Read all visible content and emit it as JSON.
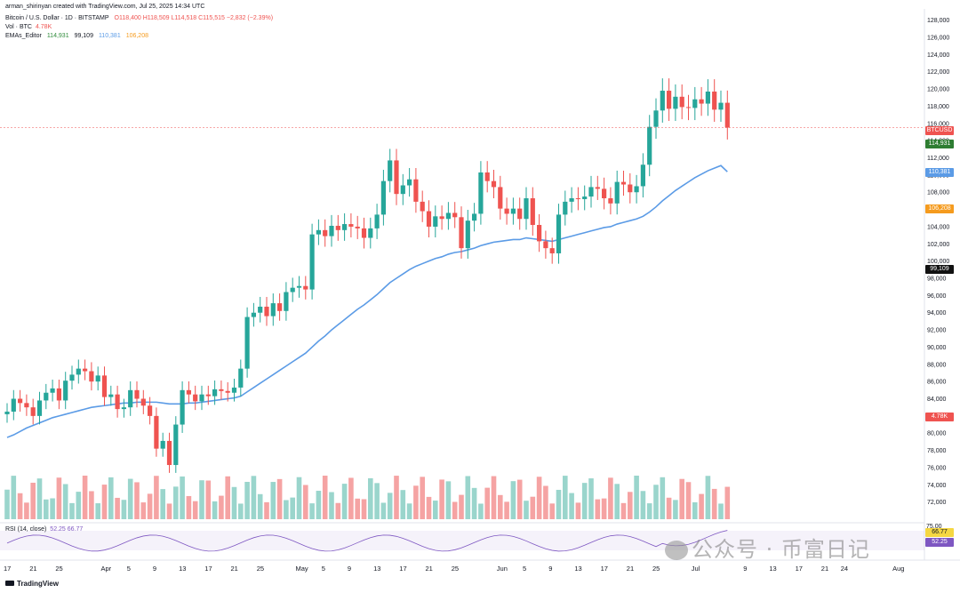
{
  "header": {
    "author_line": "arman_shirinyan created with TradingView.com, Jul 25, 2025 14:34 UTC",
    "symbol": "Bitcoin / U.S. Dollar · 1D · BITSTAMP",
    "ohlc": "O118,400  H118,509  L114,518  C115,515  −2,832 (−2.39%)",
    "vol_label": "Vol · BTC",
    "vol_value": "4.78K",
    "ema_label": "EMAs_Editor",
    "ema_vals": [
      "114,931",
      "99,109",
      "110,381",
      "106,208"
    ]
  },
  "tags": {
    "symbol": "BTCUSD",
    "ema20": "114,931",
    "ema50": "110,381",
    "ema100": "106,208",
    "ema200": "99,109",
    "volume": "4.78K",
    "rsi_hi": "66.77",
    "rsi_lo": "52.25"
  },
  "rsi": {
    "label": "RSI (14, close)",
    "values": "52.25  66.77",
    "scale_top": "75.00"
  },
  "footer": {
    "brand": "TradingView",
    "watermark": "公众号 · 币富日记"
  },
  "colors": {
    "up": "#26a69a",
    "down": "#ef5350",
    "vol_up": "#9ad5cc",
    "vol_down": "#f5a3a3",
    "ema20": "#8bc48a",
    "ema50": "#5b9be6",
    "ema100": "#f59b1e",
    "ema200": "#111111",
    "trend": "#4c78d8",
    "rsi": "#7e57c2"
  },
  "chart_data": {
    "type": "line",
    "title": "Bitcoin / U.S. Dollar · 1D · BITSTAMP",
    "ylim": [
      70000,
      129000
    ],
    "y_ticks": [
      72000,
      74000,
      76000,
      78000,
      80000,
      82000,
      84000,
      86000,
      88000,
      90000,
      92000,
      94000,
      96000,
      98000,
      100000,
      102000,
      104000,
      106000,
      108000,
      110000,
      112000,
      114000,
      116000,
      118000,
      120000,
      122000,
      124000,
      126000,
      128000
    ],
    "x_ticks": [
      "17",
      "21",
      "25",
      "Apr",
      "5",
      "9",
      "13",
      "17",
      "21",
      "25",
      "May",
      "5",
      "9",
      "13",
      "17",
      "21",
      "25",
      "Jun",
      "5",
      "9",
      "13",
      "17",
      "21",
      "25",
      "Jul",
      "9",
      "13",
      "17",
      "21",
      "24",
      "Aug"
    ],
    "x_tick_days": [
      0,
      4,
      8,
      15,
      19,
      23,
      27,
      31,
      35,
      39,
      45,
      49,
      53,
      57,
      61,
      65,
      69,
      76,
      80,
      84,
      88,
      92,
      96,
      100,
      106,
      114,
      118,
      122,
      126,
      129,
      137
    ],
    "candles_close": [
      82500,
      84000,
      83500,
      83000,
      82000,
      83800,
      84700,
      85200,
      83800,
      86100,
      86800,
      87500,
      87200,
      86000,
      86700,
      84200,
      84500,
      82800,
      83000,
      85000,
      84000,
      83200,
      82000,
      78200,
      79100,
      76300,
      81000,
      85000,
      84500,
      83700,
      84500,
      84300,
      85100,
      84900,
      84700,
      85300,
      87500,
      93500,
      94000,
      94700,
      93600,
      95100,
      94200,
      96400,
      96900,
      97100,
      96700,
      103100,
      103600,
      102900,
      104100,
      103600,
      104300,
      104000,
      103800,
      102700,
      103800,
      105400,
      109300,
      111700,
      107800,
      108800,
      109500,
      106900,
      105800,
      104000,
      105200,
      104900,
      105600,
      105100,
      101500,
      104700,
      105500,
      110300,
      109300,
      108600,
      106100,
      105500,
      106100,
      104900,
      107300,
      104200,
      102300,
      101500,
      100900,
      105400,
      106900,
      107300,
      107200,
      107500,
      108600,
      108400,
      107300,
      106700,
      109200,
      108900,
      108000,
      108700,
      111200,
      115600,
      117500,
      119800,
      117700,
      119100,
      117900,
      117800,
      118800,
      118300,
      119700,
      117600,
      118400,
      115515
    ],
    "volume_label_last": "4.78K",
    "ema_last": {
      "EMA20": 114931,
      "EMA50": 110381,
      "EMA100": 106208,
      "EMA200": 99109
    },
    "series": [
      {
        "name": "EMA",
        "values": [
          79500,
          79800,
          80200,
          80600,
          80900,
          81200,
          81500,
          81800,
          82000,
          82200,
          82400,
          82600,
          82800,
          83000,
          83100,
          83200,
          83300,
          83400,
          83500,
          83500,
          83600,
          83600,
          83600,
          83600,
          83500,
          83400,
          83400,
          83400,
          83500,
          83500,
          83600,
          83700,
          83800,
          83900,
          84000,
          84100,
          84300,
          84800,
          85300,
          85800,
          86300,
          86800,
          87300,
          87800,
          88300,
          88800,
          89300,
          90000,
          90700,
          91300,
          92000,
          92600,
          93200,
          93800,
          94400,
          94900,
          95500,
          96100,
          96800,
          97500,
          98000,
          98500,
          99000,
          99400,
          99700,
          100000,
          100300,
          100500,
          100800,
          101000,
          101100,
          101300,
          101500,
          101800,
          102000,
          102200,
          102300,
          102400,
          102500,
          102500,
          102700,
          102600,
          102500,
          102400,
          102300,
          102500,
          102700,
          102900,
          103100,
          103300,
          103500,
          103700,
          103900,
          104000,
          104300,
          104500,
          104700,
          104900,
          105200,
          105700,
          106300,
          107000,
          107600,
          108200,
          108700,
          109200,
          109700,
          110100,
          110500,
          110800,
          111100,
          110381
        ]
      }
    ]
  }
}
